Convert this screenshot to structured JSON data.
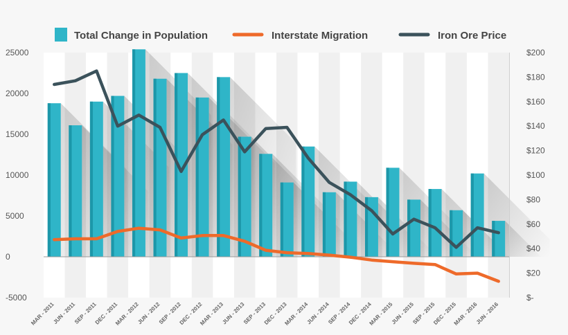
{
  "chart_data": {
    "type": "bar+line",
    "title": "",
    "categories": [
      "MAR - 2011",
      "JUN - 2011",
      "SEP - 2011",
      "DEC - 2011",
      "MAR - 2012",
      "JUN - 2012",
      "SEP - 2012",
      "DEC - 2012",
      "MAR - 2013",
      "JUN - 2013",
      "SEP - 2013",
      "DEC - 2013",
      "MAR - 2014",
      "JUN - 2014",
      "SEP - 2014",
      "DEC - 2014",
      "MAR - 2015",
      "JUN - 2015",
      "SEP - 2015",
      "DEC - 2015",
      "MAR - 2016",
      "JUN - 2016"
    ],
    "series": [
      {
        "name": "Total Change in Population",
        "type": "bar",
        "axis": "left",
        "color": "#2fb5c8",
        "values": [
          18800,
          16100,
          19000,
          19700,
          25400,
          21800,
          22500,
          19500,
          22000,
          14700,
          12600,
          9100,
          13500,
          7900,
          9200,
          7300,
          10900,
          7000,
          8300,
          5700,
          10200,
          4400
        ]
      },
      {
        "name": "Interstate Migration",
        "type": "line",
        "axis": "left",
        "color": "#ee6a2a",
        "values": [
          2100,
          2200,
          2200,
          3100,
          3500,
          3300,
          2300,
          2600,
          2600,
          1900,
          800,
          500,
          400,
          200,
          -50,
          -400,
          -600,
          -800,
          -950,
          -2100,
          -2000,
          -3000
        ]
      },
      {
        "name": "Iron Ore Price",
        "type": "line",
        "axis": "right",
        "color": "#3b525b",
        "values": [
          174,
          177,
          185,
          140,
          149,
          139,
          103,
          133,
          145,
          119,
          138,
          139,
          114,
          94,
          84,
          71,
          52,
          64,
          57,
          41,
          57,
          53
        ]
      }
    ],
    "y_left": {
      "min": -5000,
      "max": 25000,
      "ticks": [
        "-5000",
        "0",
        "5000",
        "10000",
        "15000",
        "20000",
        "25000"
      ],
      "tick_values": [
        -5000,
        0,
        5000,
        10000,
        15000,
        20000,
        25000
      ]
    },
    "y_right": {
      "min": 0,
      "max": 200,
      "ticks": [
        "$-",
        "$20",
        "$40",
        "$60",
        "$80",
        "$100",
        "$120",
        "$140",
        "$160",
        "$180",
        "$200"
      ],
      "tick_values": [
        0,
        20,
        40,
        60,
        80,
        100,
        120,
        140,
        160,
        180,
        200
      ]
    },
    "legend": [
      "Total Change in Population",
      "Interstate Migration",
      "Iron Ore Price"
    ],
    "legend_position": "top",
    "grid": false
  }
}
